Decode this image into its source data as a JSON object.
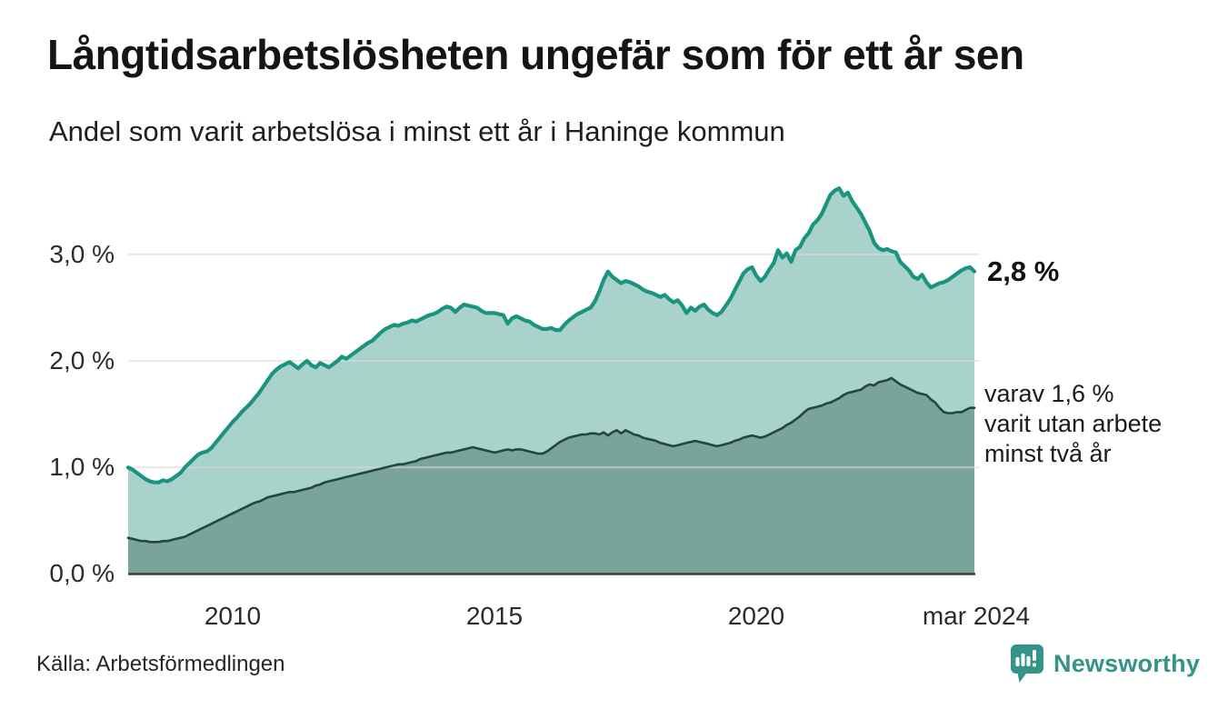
{
  "header": {
    "title": "Långtidsarbetslösheten ungefär som för ett år sen",
    "subtitle": "Andel som varit arbetslösa i minst ett år i Haninge kommun"
  },
  "colors": {
    "line_total": "#1a947f",
    "fill_total": "#a8d2ca",
    "line_two_years": "#21473f",
    "fill_two_years": "#7aa49b",
    "gridline": "#d9d9d9",
    "axis_line": "#3c3c3c",
    "brand_teal": "#35948a"
  },
  "chart_data": {
    "type": "area",
    "unit": "%",
    "x_start": "2008-01",
    "x_end": "2024-03",
    "frequency": "monthly",
    "ylim": [
      0,
      3.85
    ],
    "grid": true,
    "legend": "none",
    "y_ticks": [
      0,
      1,
      2,
      3
    ],
    "y_tick_labels": [
      "0,0 %",
      "1,0 %",
      "2,0 %",
      "3,0 %"
    ],
    "x_tick_labels": [
      "2010",
      "2015",
      "2020",
      "mar 2024"
    ],
    "x_tick_month_index": [
      24,
      84,
      144,
      194
    ],
    "latest_values": {
      "minst_ett_ar": 2.8,
      "minst_tva_ar": 1.6
    },
    "series": [
      {
        "name": "Andel arbetslösa minst ett år",
        "values": [
          1.0,
          0.98,
          0.95,
          0.92,
          0.89,
          0.87,
          0.86,
          0.86,
          0.88,
          0.87,
          0.89,
          0.92,
          0.95,
          1.0,
          1.04,
          1.08,
          1.12,
          1.14,
          1.15,
          1.18,
          1.23,
          1.28,
          1.33,
          1.38,
          1.43,
          1.47,
          1.52,
          1.56,
          1.6,
          1.65,
          1.7,
          1.76,
          1.82,
          1.88,
          1.92,
          1.95,
          1.97,
          1.99,
          1.96,
          1.93,
          1.97,
          2.0,
          1.96,
          1.94,
          1.98,
          1.96,
          1.94,
          1.97,
          2.0,
          2.04,
          2.02,
          2.05,
          2.08,
          2.11,
          2.14,
          2.17,
          2.19,
          2.23,
          2.27,
          2.3,
          2.32,
          2.34,
          2.33,
          2.35,
          2.36,
          2.38,
          2.37,
          2.39,
          2.41,
          2.43,
          2.44,
          2.46,
          2.49,
          2.51,
          2.5,
          2.46,
          2.5,
          2.53,
          2.52,
          2.51,
          2.5,
          2.47,
          2.45,
          2.45,
          2.45,
          2.44,
          2.43,
          2.35,
          2.4,
          2.42,
          2.4,
          2.38,
          2.37,
          2.34,
          2.32,
          2.3,
          2.3,
          2.31,
          2.29,
          2.29,
          2.34,
          2.38,
          2.41,
          2.44,
          2.46,
          2.48,
          2.5,
          2.56,
          2.65,
          2.76,
          2.84,
          2.79,
          2.76,
          2.73,
          2.75,
          2.74,
          2.72,
          2.7,
          2.67,
          2.65,
          2.64,
          2.62,
          2.6,
          2.62,
          2.58,
          2.55,
          2.57,
          2.52,
          2.45,
          2.5,
          2.47,
          2.51,
          2.53,
          2.48,
          2.45,
          2.43,
          2.46,
          2.52,
          2.58,
          2.66,
          2.74,
          2.82,
          2.86,
          2.88,
          2.8,
          2.75,
          2.79,
          2.86,
          2.92,
          3.04,
          2.97,
          3.01,
          2.93,
          3.04,
          3.07,
          3.15,
          3.2,
          3.28,
          3.32,
          3.38,
          3.47,
          3.56,
          3.6,
          3.62,
          3.55,
          3.58,
          3.5,
          3.44,
          3.38,
          3.3,
          3.22,
          3.11,
          3.06,
          3.04,
          3.05,
          3.03,
          3.02,
          2.93,
          2.89,
          2.85,
          2.79,
          2.77,
          2.81,
          2.74,
          2.69,
          2.71,
          2.73,
          2.74,
          2.76,
          2.79,
          2.82,
          2.85,
          2.87,
          2.88,
          2.84
        ]
      },
      {
        "name": "varav utan arbete minst två år",
        "values": [
          0.34,
          0.33,
          0.32,
          0.31,
          0.31,
          0.3,
          0.3,
          0.3,
          0.31,
          0.31,
          0.32,
          0.33,
          0.34,
          0.35,
          0.37,
          0.39,
          0.41,
          0.43,
          0.45,
          0.47,
          0.49,
          0.51,
          0.53,
          0.55,
          0.57,
          0.59,
          0.61,
          0.63,
          0.65,
          0.67,
          0.68,
          0.7,
          0.72,
          0.73,
          0.74,
          0.75,
          0.76,
          0.77,
          0.77,
          0.78,
          0.79,
          0.8,
          0.81,
          0.83,
          0.84,
          0.86,
          0.87,
          0.88,
          0.89,
          0.9,
          0.91,
          0.92,
          0.93,
          0.94,
          0.95,
          0.96,
          0.97,
          0.98,
          0.99,
          1.0,
          1.01,
          1.02,
          1.03,
          1.03,
          1.04,
          1.05,
          1.06,
          1.08,
          1.09,
          1.1,
          1.11,
          1.12,
          1.13,
          1.14,
          1.14,
          1.15,
          1.16,
          1.17,
          1.18,
          1.19,
          1.18,
          1.17,
          1.16,
          1.15,
          1.14,
          1.15,
          1.16,
          1.17,
          1.16,
          1.17,
          1.17,
          1.16,
          1.15,
          1.14,
          1.13,
          1.13,
          1.15,
          1.18,
          1.21,
          1.24,
          1.26,
          1.28,
          1.29,
          1.3,
          1.31,
          1.31,
          1.32,
          1.32,
          1.31,
          1.33,
          1.3,
          1.33,
          1.35,
          1.32,
          1.35,
          1.33,
          1.31,
          1.3,
          1.28,
          1.27,
          1.26,
          1.25,
          1.23,
          1.22,
          1.21,
          1.2,
          1.21,
          1.22,
          1.23,
          1.24,
          1.25,
          1.24,
          1.23,
          1.22,
          1.21,
          1.2,
          1.21,
          1.22,
          1.23,
          1.25,
          1.26,
          1.28,
          1.29,
          1.3,
          1.29,
          1.28,
          1.29,
          1.31,
          1.33,
          1.35,
          1.37,
          1.4,
          1.42,
          1.45,
          1.48,
          1.52,
          1.55,
          1.56,
          1.57,
          1.58,
          1.6,
          1.61,
          1.63,
          1.65,
          1.68,
          1.7,
          1.71,
          1.72,
          1.73,
          1.76,
          1.78,
          1.77,
          1.8,
          1.81,
          1.82,
          1.84,
          1.81,
          1.78,
          1.76,
          1.74,
          1.72,
          1.7,
          1.69,
          1.68,
          1.64,
          1.61,
          1.56,
          1.52,
          1.51,
          1.51,
          1.52,
          1.52,
          1.54,
          1.56,
          1.56
        ]
      }
    ]
  },
  "annotations": {
    "latest_total": "2,8 %",
    "secondary_line1": "varav 1,6 %",
    "secondary_line2": "varit utan arbete",
    "secondary_line3": "minst två år"
  },
  "footer": {
    "source": "Källa: Arbetsförmedlingen",
    "brand": "Newsworthy"
  }
}
